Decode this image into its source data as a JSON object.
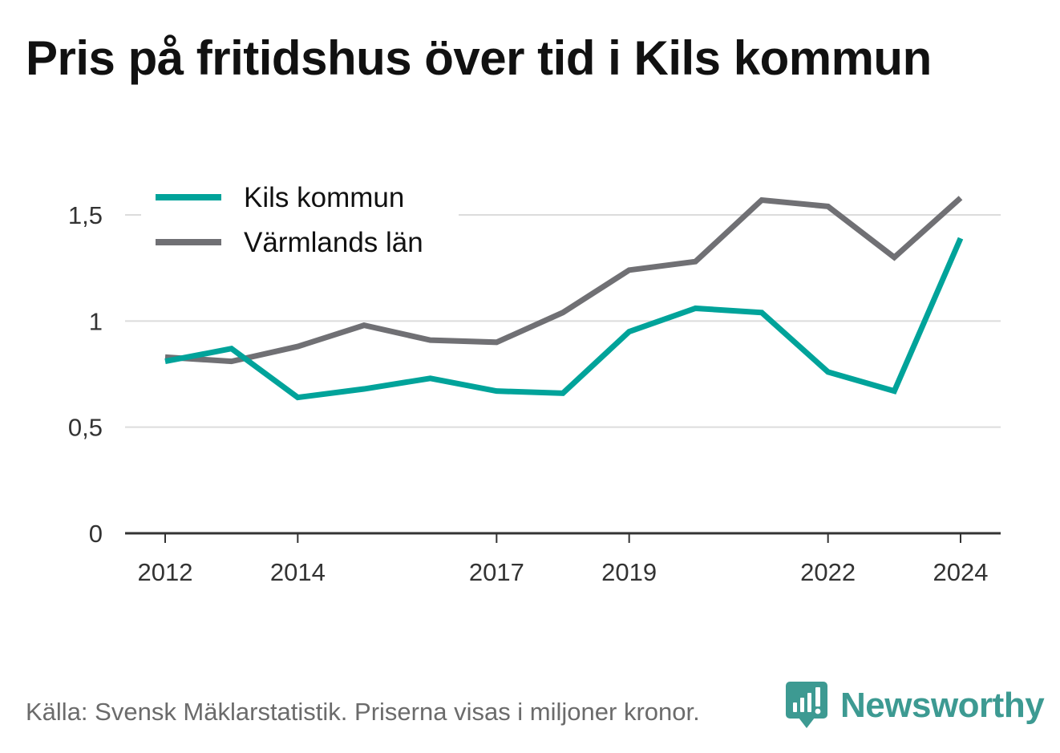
{
  "chart_data": {
    "type": "line",
    "title": "Pris på fritidshus över tid i Kils kommun",
    "xlabel": "",
    "ylabel": "",
    "x": [
      2012,
      2013,
      2014,
      2015,
      2016,
      2017,
      2018,
      2019,
      2020,
      2021,
      2022,
      2023,
      2024
    ],
    "x_ticks": [
      "2012",
      "2014",
      "2017",
      "2019",
      "2022",
      "2024"
    ],
    "y_ticks": [
      "0",
      "0,5",
      "1",
      "1,5"
    ],
    "ylim": [
      0,
      1.6
    ],
    "grid": true,
    "legend_position": "top-left",
    "series": [
      {
        "name": "Kils kommun",
        "color": "#00a39a",
        "values": [
          0.81,
          0.87,
          0.64,
          0.68,
          0.73,
          0.67,
          0.66,
          0.95,
          1.06,
          1.04,
          0.76,
          0.67,
          1.39
        ]
      },
      {
        "name": "Värmlands län",
        "color": "#707074",
        "values": [
          0.83,
          0.81,
          0.88,
          0.98,
          0.91,
          0.9,
          1.04,
          1.24,
          1.28,
          1.57,
          1.54,
          1.3,
          1.58
        ]
      }
    ]
  },
  "footer": {
    "source": "Källa: Svensk Mäklarstatistik. Priserna visas i miljoner kronor.",
    "brand": "Newsworthy"
  },
  "colors": {
    "grid": "#dcdcdc",
    "axis": "#333333",
    "brand": "#3d9a92"
  },
  "icons": {
    "brand_logo": "bar-chart-speech-bubble-icon"
  }
}
